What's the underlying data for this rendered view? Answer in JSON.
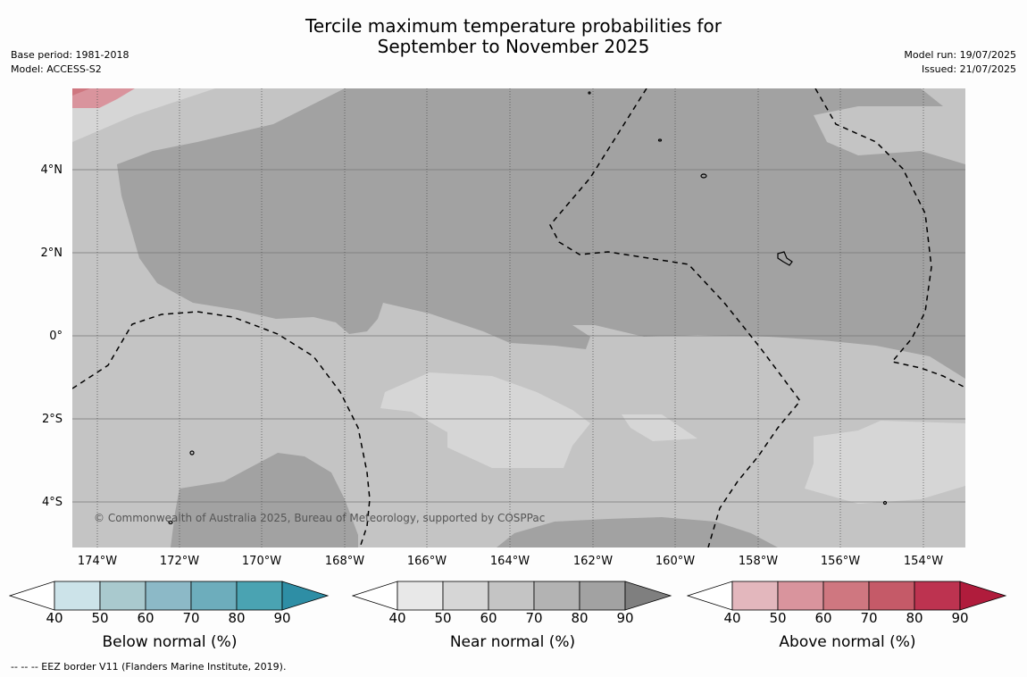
{
  "title_line1": "Tercile maximum temperature probabilities for",
  "title_line2": "September to November 2025",
  "meta_left": [
    "Base period: 1981-2018",
    "Model: ACCESS-S2"
  ],
  "meta_right": [
    "Model run: 19/07/2025",
    "Issued: 21/07/2025"
  ],
  "copyright": "© Commonwealth of Australia 2025, Bureau of Meteorology, supported by COSPPac",
  "lat_ticks": [
    "4°N",
    "2°N",
    "0°",
    "2°S",
    "4°S"
  ],
  "lon_ticks": [
    "174°W",
    "172°W",
    "170°W",
    "168°W",
    "166°W",
    "164°W",
    "162°W",
    "160°W",
    "158°W",
    "156°W",
    "154°W"
  ],
  "colorbars": [
    {
      "label": "Below normal (%)",
      "ticks": [
        "40",
        "50",
        "60",
        "70",
        "80",
        "90"
      ],
      "colors": [
        "#ffffff",
        "#cce3e9",
        "#a9c9ce",
        "#8cb9c7",
        "#6dadbc",
        "#4aa3b2",
        "#2e8ea5"
      ]
    },
    {
      "label": "Near normal (%)",
      "ticks": [
        "40",
        "50",
        "60",
        "70",
        "80",
        "90"
      ],
      "colors": [
        "#ffffff",
        "#e8e8e8",
        "#d6d6d6",
        "#c4c4c4",
        "#b3b3b3",
        "#a2a2a2",
        "#7f7f7f"
      ]
    },
    {
      "label": "Above normal (%)",
      "ticks": [
        "40",
        "50",
        "60",
        "70",
        "80",
        "90"
      ],
      "colors": [
        "#ffffff",
        "#e3b7bd",
        "#d9949d",
        "#cf7780",
        "#c55a68",
        "#bd3350",
        "#b01c3c"
      ]
    }
  ],
  "footnote": "--  --  -- EEZ border V11 (Flanders Marine Institute, 2019).",
  "palette": {
    "near_60": "#d6d6d6",
    "near_70": "#c4c4c4",
    "near_80": "#a2a2a2",
    "above_60": "#d9949d",
    "above_70": "#cf7780"
  }
}
